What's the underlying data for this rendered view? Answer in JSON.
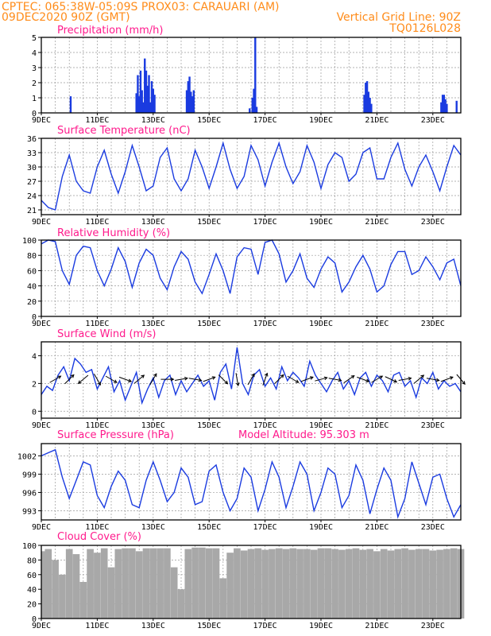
{
  "header": {
    "left_line1": "CPTEC:   065:38W-05:09S   PROX03: CARAUARI (AM)",
    "left_line2": "09DEC2020 90Z (GMT)",
    "right_line2": "Vertical Grid Line: 90Z",
    "right_line3": "TQ0126L028"
  },
  "colors": {
    "series": "#1a3be0",
    "title": "#ff1a8c",
    "header": "#ff8c1a",
    "cloud": "#a8a8a8"
  },
  "x_ticks": [
    "9DEC",
    "11DEC",
    "13DEC",
    "15DEC",
    "17DEC",
    "19DEC",
    "21DEC",
    "23DEC"
  ],
  "chart_data": [
    {
      "type": "bar",
      "title": "Precipitation (mm/h)",
      "ylim": [
        0,
        5
      ],
      "yticks": [
        0,
        1,
        2,
        3,
        4,
        5
      ],
      "xlim": [
        0,
        15
      ],
      "x": [
        1.05,
        3.4,
        3.45,
        3.5,
        3.55,
        3.6,
        3.65,
        3.7,
        3.75,
        3.8,
        3.85,
        3.9,
        3.95,
        4.0,
        4.05,
        5.2,
        5.25,
        5.3,
        5.35,
        5.4,
        5.45,
        7.45,
        7.55,
        7.6,
        7.65,
        7.7,
        11.55,
        11.6,
        11.65,
        11.7,
        11.75,
        11.8,
        14.3,
        14.35,
        14.4,
        14.45,
        14.5,
        14.85
      ],
      "values": [
        1.1,
        1.3,
        2.5,
        1.1,
        2.8,
        1.5,
        0.7,
        3.6,
        2.8,
        1.8,
        2.5,
        0.7,
        2.1,
        1.6,
        1.2,
        1.5,
        2.1,
        2.4,
        1.4,
        1.1,
        1.5,
        0.3,
        1.0,
        1.6,
        5.0,
        0.4,
        1.2,
        2.0,
        2.1,
        1.4,
        1.0,
        0.6,
        0.7,
        1.2,
        1.2,
        0.9,
        0.6,
        0.8
      ]
    },
    {
      "type": "line",
      "title": "Surface Temperature (nC)",
      "ylim": [
        20,
        36
      ],
      "yticks": [
        21,
        24,
        27,
        30,
        33,
        36
      ],
      "xlim": [
        0,
        15
      ],
      "x": [
        0,
        0.25,
        0.5,
        0.75,
        1.0,
        1.25,
        1.5,
        1.75,
        2.0,
        2.25,
        2.5,
        2.75,
        3.0,
        3.25,
        3.5,
        3.75,
        4.0,
        4.25,
        4.5,
        4.75,
        5.0,
        5.25,
        5.5,
        5.75,
        6.0,
        6.25,
        6.5,
        6.75,
        7.0,
        7.25,
        7.5,
        7.75,
        8.0,
        8.25,
        8.5,
        8.75,
        9.0,
        9.25,
        9.5,
        9.75,
        10.0,
        10.25,
        10.5,
        10.75,
        11.0,
        11.25,
        11.5,
        11.75,
        12.0,
        12.25,
        12.5,
        12.75,
        13.0,
        13.25,
        13.5,
        13.75,
        14.0,
        14.25,
        14.5,
        14.75,
        15.0
      ],
      "values": [
        23.0,
        21.5,
        21.0,
        28.0,
        32.5,
        27.0,
        25.0,
        24.5,
        30.0,
        33.5,
        28.5,
        24.5,
        29.0,
        34.5,
        30.0,
        25.0,
        26.0,
        32.0,
        34.0,
        27.5,
        25.0,
        27.5,
        33.5,
        30.0,
        25.5,
        30.0,
        35.0,
        29.5,
        25.5,
        28.0,
        34.5,
        31.5,
        26.0,
        31.0,
        35.0,
        30.0,
        26.5,
        29.0,
        34.5,
        31.0,
        25.5,
        30.5,
        33.0,
        32.0,
        27.0,
        28.5,
        33.0,
        34.0,
        27.5,
        27.5,
        32.0,
        35.0,
        29.5,
        26.0,
        30.0,
        32.5,
        29.0,
        25.0,
        30.0,
        34.5,
        32.5
      ]
    },
    {
      "type": "line",
      "title": "Relative Humidity (%)",
      "ylim": [
        0,
        100
      ],
      "yticks": [
        0,
        20,
        40,
        60,
        80,
        100
      ],
      "xlim": [
        0,
        15
      ],
      "x": [
        0,
        0.25,
        0.5,
        0.75,
        1.0,
        1.25,
        1.5,
        1.75,
        2.0,
        2.25,
        2.5,
        2.75,
        3.0,
        3.25,
        3.5,
        3.75,
        4.0,
        4.25,
        4.5,
        4.75,
        5.0,
        5.25,
        5.5,
        5.75,
        6.0,
        6.25,
        6.5,
        6.75,
        7.0,
        7.25,
        7.5,
        7.75,
        8.0,
        8.25,
        8.5,
        8.75,
        9.0,
        9.25,
        9.5,
        9.75,
        10.0,
        10.25,
        10.5,
        10.75,
        11.0,
        11.25,
        11.5,
        11.75,
        12.0,
        12.25,
        12.5,
        12.75,
        13.0,
        13.25,
        13.5,
        13.75,
        14.0,
        14.25,
        14.5,
        14.75,
        15.0
      ],
      "values": [
        95,
        100,
        98,
        60,
        42,
        80,
        92,
        90,
        60,
        40,
        62,
        90,
        72,
        38,
        70,
        88,
        80,
        50,
        35,
        65,
        85,
        75,
        45,
        30,
        55,
        82,
        60,
        30,
        78,
        90,
        88,
        55,
        97,
        100,
        82,
        45,
        60,
        82,
        50,
        38,
        62,
        78,
        70,
        32,
        45,
        65,
        80,
        62,
        32,
        40,
        68,
        85,
        85,
        55,
        60,
        78,
        65,
        48,
        70,
        75,
        40
      ]
    },
    {
      "type": "line",
      "title": "Surface Wind (m/s)",
      "ylim": [
        -0.5,
        5.0
      ],
      "yticks": [
        0,
        2,
        4
      ],
      "xlim": [
        0,
        15
      ],
      "x": [
        0,
        0.2,
        0.4,
        0.6,
        0.8,
        1.0,
        1.2,
        1.4,
        1.6,
        1.8,
        2.0,
        2.2,
        2.4,
        2.6,
        2.8,
        3.0,
        3.2,
        3.4,
        3.6,
        3.8,
        4.0,
        4.2,
        4.4,
        4.6,
        4.8,
        5.0,
        5.2,
        5.4,
        5.6,
        5.8,
        6.0,
        6.2,
        6.4,
        6.6,
        6.8,
        7.0,
        7.2,
        7.4,
        7.6,
        7.8,
        8.0,
        8.2,
        8.4,
        8.6,
        8.8,
        9.0,
        9.2,
        9.4,
        9.6,
        9.8,
        10.0,
        10.2,
        10.4,
        10.6,
        10.8,
        11.0,
        11.2,
        11.4,
        11.6,
        11.8,
        12.0,
        12.2,
        12.4,
        12.6,
        12.8,
        13.0,
        13.2,
        13.4,
        13.6,
        13.8,
        14.0,
        14.2,
        14.4,
        14.6,
        14.8,
        15.0
      ],
      "values": [
        1.2,
        1.8,
        1.5,
        2.6,
        3.2,
        2.2,
        3.8,
        3.4,
        2.8,
        3.0,
        1.6,
        2.4,
        3.2,
        1.4,
        2.2,
        0.8,
        1.8,
        2.8,
        0.6,
        1.6,
        2.4,
        1.0,
        2.2,
        2.6,
        1.2,
        2.2,
        1.4,
        2.0,
        2.6,
        1.8,
        2.2,
        0.8,
        2.8,
        3.4,
        1.6,
        4.6,
        2.0,
        1.2,
        2.6,
        3.0,
        1.8,
        2.4,
        1.6,
        3.2,
        2.2,
        2.8,
        2.4,
        1.8,
        3.6,
        2.6,
        2.0,
        1.4,
        2.2,
        2.8,
        1.6,
        2.2,
        1.2,
        2.4,
        2.8,
        1.8,
        2.6,
        2.2,
        1.4,
        2.6,
        2.8,
        1.8,
        2.2,
        1.0,
        2.4,
        2.0,
        2.8,
        1.6,
        2.2,
        1.8,
        2.0,
        1.4
      ],
      "arrows_x": [
        0.5,
        1.0,
        1.5,
        2.0,
        2.5,
        3.0,
        3.5,
        4.0,
        4.5,
        5.0,
        5.5,
        6.0,
        6.5,
        7.0,
        7.5,
        8.0,
        8.5,
        9.0,
        9.5,
        10.0,
        10.5,
        11.0,
        11.5,
        12.0,
        12.5,
        13.0,
        13.5,
        14.0,
        14.5,
        15.0
      ],
      "arrows_dir_deg": [
        30,
        45,
        220,
        -60,
        -30,
        -20,
        40,
        60,
        0,
        10,
        -10,
        20,
        -45,
        -80,
        60,
        70,
        45,
        -30,
        20,
        15,
        -10,
        35,
        -20,
        30,
        -25,
        10,
        40,
        -10,
        20,
        -50
      ]
    },
    {
      "type": "line",
      "title": "Surface Pressure (hPa)",
      "annotation": "Model Altitude: 95.303 m",
      "ylim": [
        991.5,
        1004
      ],
      "yticks": [
        993,
        996,
        999,
        1002
      ],
      "xlim": [
        0,
        15
      ],
      "x": [
        0,
        0.25,
        0.5,
        0.75,
        1.0,
        1.25,
        1.5,
        1.75,
        2.0,
        2.25,
        2.5,
        2.75,
        3.0,
        3.25,
        3.5,
        3.75,
        4.0,
        4.25,
        4.5,
        4.75,
        5.0,
        5.25,
        5.5,
        5.75,
        6.0,
        6.25,
        6.5,
        6.75,
        7.0,
        7.25,
        7.5,
        7.75,
        8.0,
        8.25,
        8.5,
        8.75,
        9.0,
        9.25,
        9.5,
        9.75,
        10.0,
        10.25,
        10.5,
        10.75,
        11.0,
        11.25,
        11.5,
        11.75,
        12.0,
        12.25,
        12.5,
        12.75,
        13.0,
        13.25,
        13.5,
        13.75,
        14.0,
        14.25,
        14.5,
        14.75,
        15.0
      ],
      "values": [
        1002.0,
        1002.5,
        1003.0,
        998.5,
        995.0,
        998.0,
        1001.0,
        1000.5,
        995.5,
        993.5,
        997.0,
        999.5,
        998.0,
        994.0,
        993.5,
        998.0,
        1001.0,
        998.0,
        994.5,
        996.0,
        1000.0,
        998.5,
        994.0,
        994.5,
        999.5,
        1000.5,
        996.0,
        993.0,
        995.0,
        1000.0,
        998.5,
        993.0,
        996.5,
        1001.0,
        998.5,
        993.5,
        997.0,
        1001.0,
        999.0,
        993.0,
        996.0,
        1000.0,
        999.0,
        993.5,
        995.5,
        1000.5,
        998.0,
        992.5,
        996.5,
        1000.0,
        998.0,
        992.0,
        995.0,
        1001.0,
        997.5,
        994.0,
        998.5,
        999.0,
        995.0,
        992.0,
        994.0
      ]
    },
    {
      "type": "area",
      "title": "Cloud Cover (%)",
      "ylim": [
        0,
        100
      ],
      "yticks": [
        0,
        20,
        40,
        60,
        80,
        100
      ],
      "xlim": [
        0,
        15
      ],
      "x": [
        0,
        0.25,
        0.5,
        0.75,
        1.0,
        1.25,
        1.5,
        1.75,
        2.0,
        2.25,
        2.5,
        2.75,
        3.0,
        3.25,
        3.5,
        3.75,
        4.0,
        4.25,
        4.5,
        4.75,
        5.0,
        5.25,
        5.5,
        5.75,
        6.0,
        6.25,
        6.5,
        6.75,
        7.0,
        7.25,
        7.5,
        7.75,
        8.0,
        8.25,
        8.5,
        8.75,
        9.0,
        9.25,
        9.5,
        9.75,
        10.0,
        10.25,
        10.5,
        10.75,
        11.0,
        11.25,
        11.5,
        11.75,
        12.0,
        12.25,
        12.5,
        12.75,
        13.0,
        13.25,
        13.5,
        13.75,
        14.0,
        14.25,
        14.5,
        14.75,
        15.0
      ],
      "values": [
        92,
        95,
        80,
        60,
        95,
        88,
        50,
        95,
        90,
        96,
        70,
        95,
        96,
        96,
        92,
        96,
        96,
        96,
        96,
        70,
        40,
        95,
        97,
        97,
        96,
        96,
        55,
        90,
        96,
        93,
        95,
        96,
        94,
        95,
        96,
        95,
        96,
        95,
        95,
        94,
        96,
        96,
        95,
        94,
        95,
        96,
        94,
        95,
        92,
        95,
        93,
        95,
        96,
        94,
        95,
        95,
        93,
        94,
        95,
        96,
        95
      ]
    }
  ]
}
